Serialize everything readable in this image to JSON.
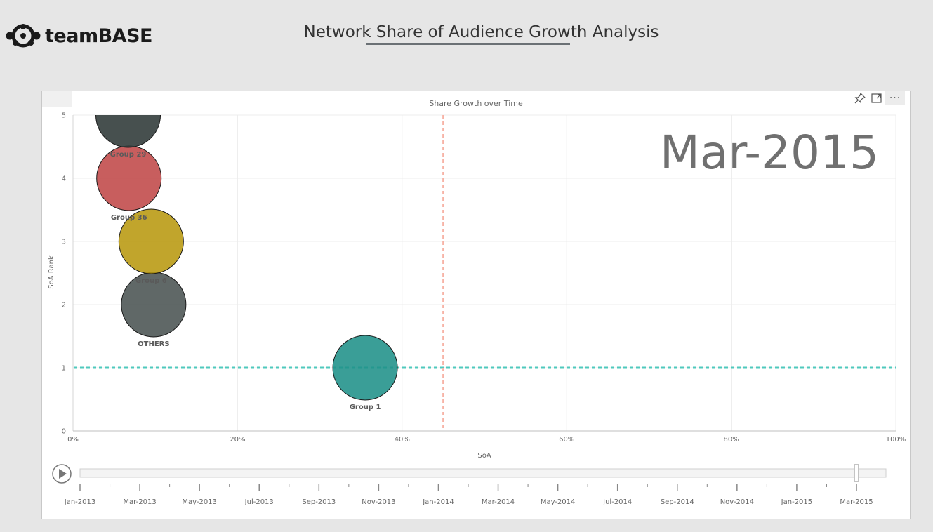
{
  "header": {
    "logo_text": "teamBASE",
    "title": "Network Share of Audience Growth Analysis"
  },
  "visual": {
    "title": "Share Growth over Time",
    "icons": [
      "pin-icon",
      "expand-icon",
      "more-options-icon"
    ],
    "more_label": "···"
  },
  "chart_data": {
    "type": "scatter",
    "title": "Share Growth over Time",
    "xlabel": "SoA",
    "ylabel": "SoA Rank",
    "xlim": [
      0,
      1
    ],
    "ylim": [
      0,
      5
    ],
    "x_ticks": [
      "0%",
      "20%",
      "40%",
      "60%",
      "80%",
      "100%"
    ],
    "y_ticks": [
      "0",
      "1",
      "2",
      "3",
      "4",
      "5"
    ],
    "play_axis_label": "Mar-2015",
    "grid": true,
    "reference_lines": [
      {
        "axis": "y",
        "value": 1,
        "color": "#4fc9bd"
      },
      {
        "axis": "x",
        "value": 0.45,
        "color": "#f7b3a6"
      }
    ],
    "points": [
      {
        "name": "Group 1",
        "x": 0.355,
        "y": 1,
        "color": "#1f9189"
      },
      {
        "name": "OTHERS",
        "x": 0.098,
        "y": 2,
        "color": "#4a5352"
      },
      {
        "name": "Group 6",
        "x": 0.095,
        "y": 3,
        "color": "#b8980f"
      },
      {
        "name": "Group 36",
        "x": 0.068,
        "y": 4,
        "color": "#c04848"
      },
      {
        "name": "Group 29",
        "x": 0.067,
        "y": 5,
        "color": "#2e3837"
      }
    ],
    "timeline": {
      "labels": [
        "Jan-2013",
        "Mar-2013",
        "May-2013",
        "Jul-2013",
        "Sep-2013",
        "Nov-2013",
        "Jan-2014",
        "Mar-2014",
        "May-2014",
        "Jul-2014",
        "Sep-2014",
        "Nov-2014",
        "Jan-2015",
        "Mar-2015"
      ],
      "current": "Mar-2015"
    }
  }
}
